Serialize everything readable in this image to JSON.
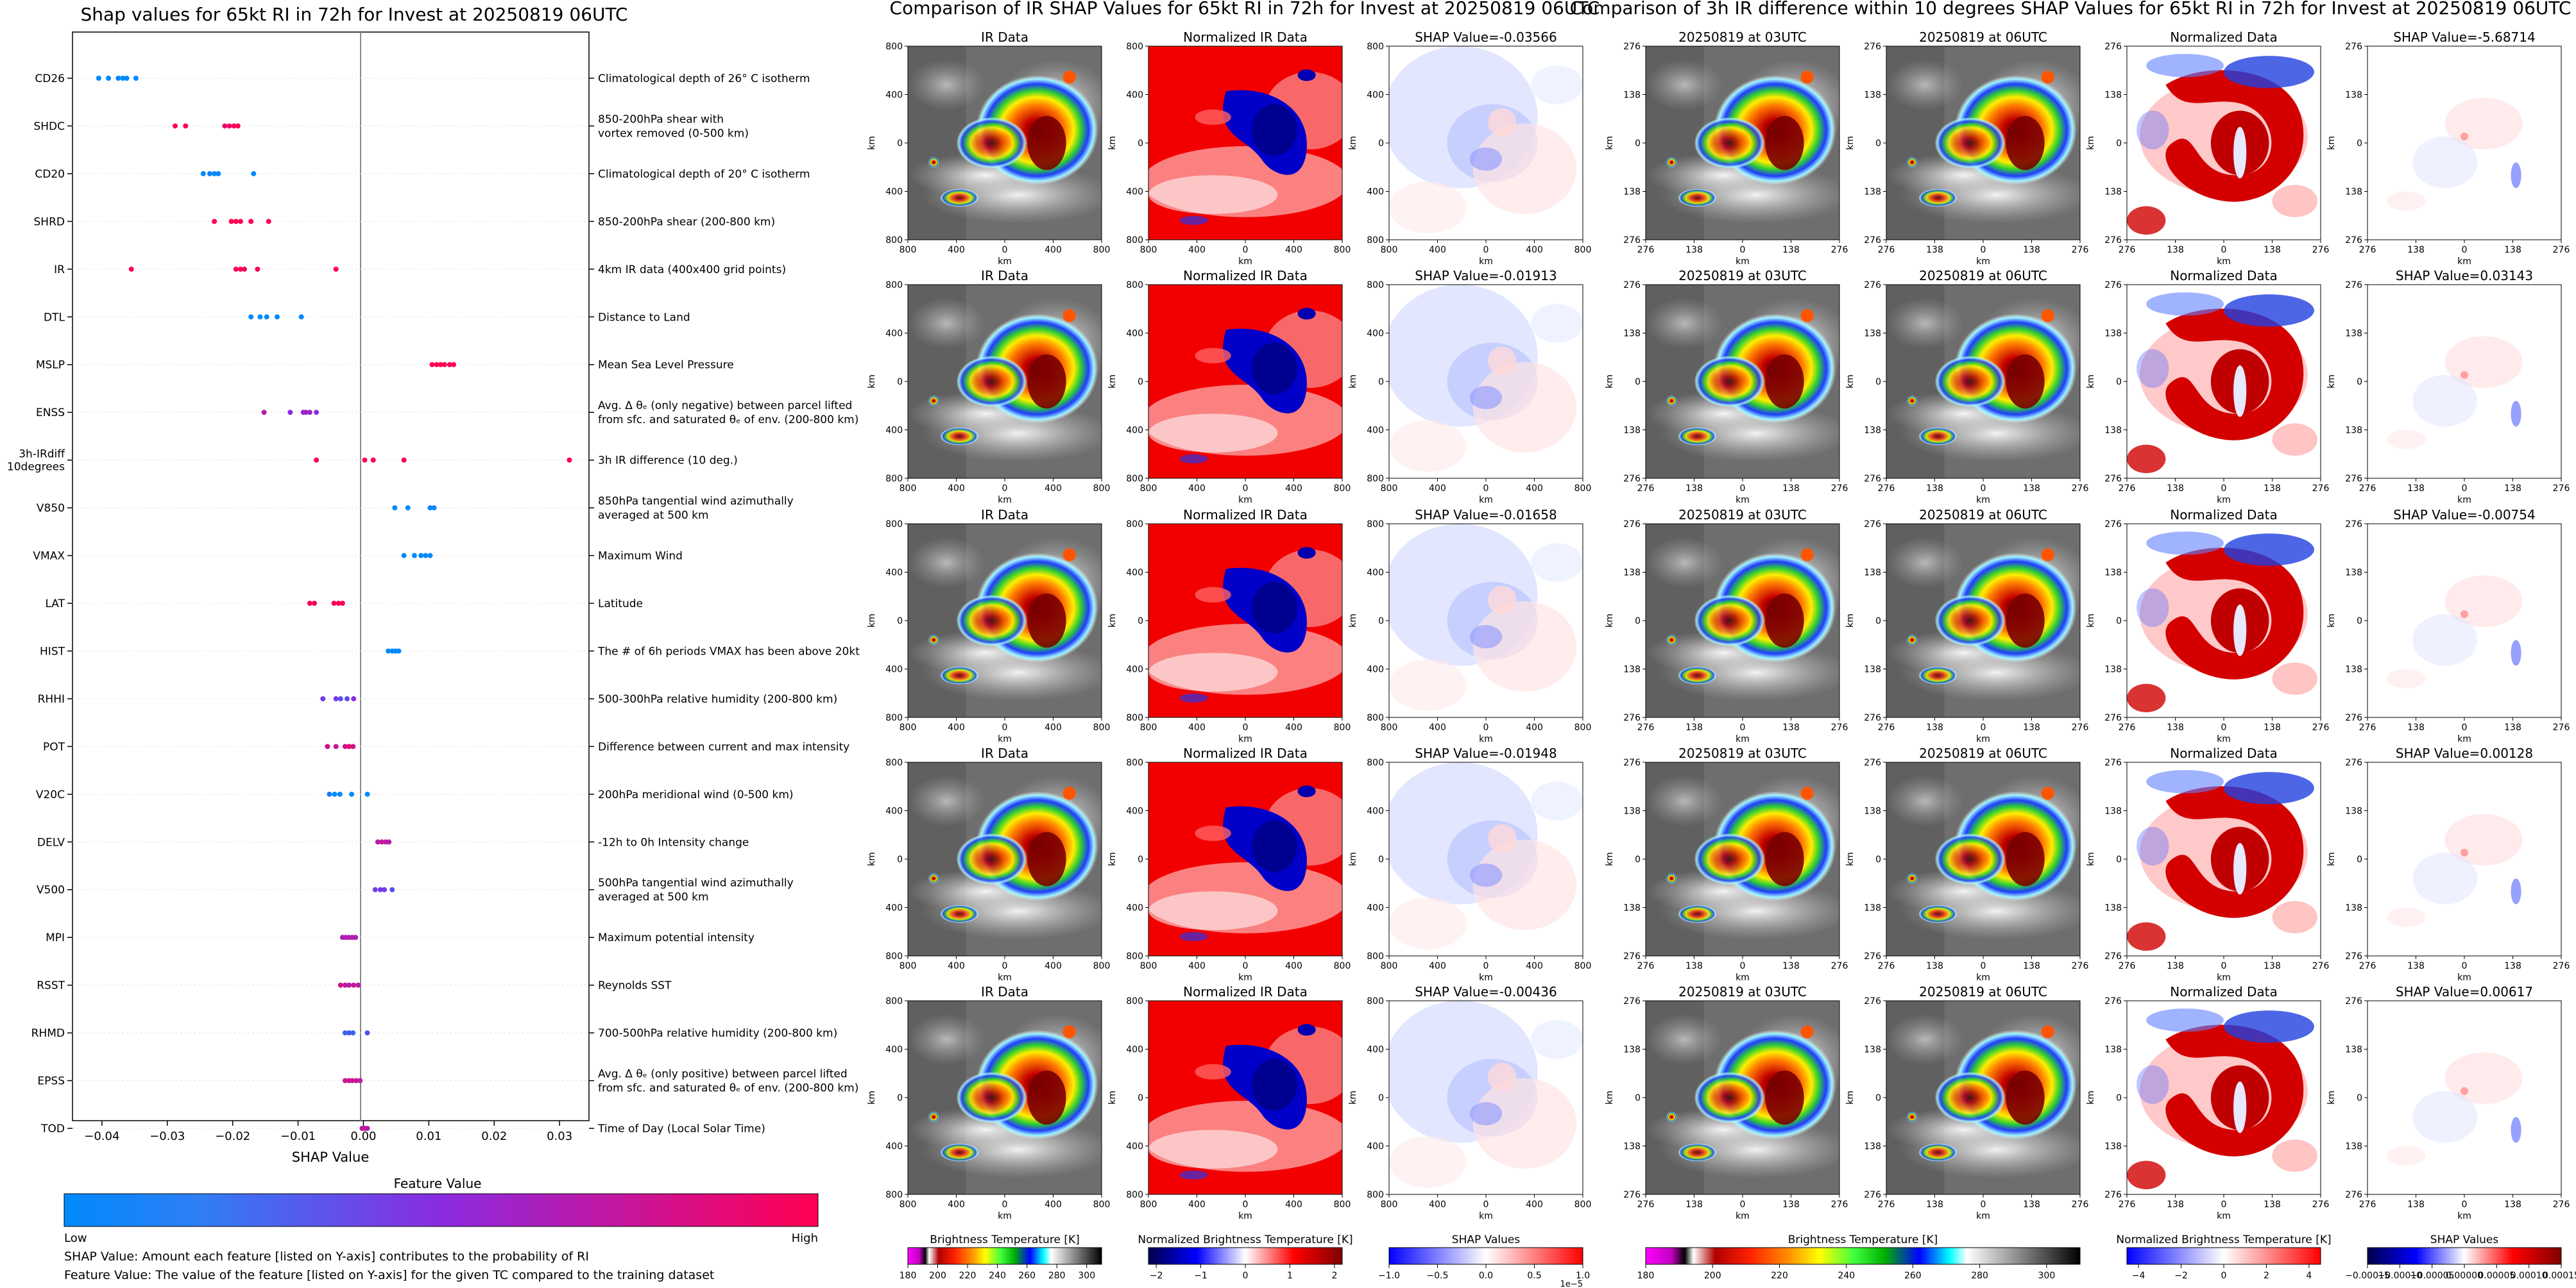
{
  "shap_panel": {
    "title": "Shap values for 65kt RI in 72h for Invest at 20250819 06UTC",
    "xlabel": "SHAP Value",
    "colorbar_title": "Feature Value",
    "colorbar_low": "Low",
    "colorbar_high": "High",
    "note_1": "SHAP Value: Amount each feature [listed on Y-axis] contributes to the probability of RI",
    "note_2": "Feature Value: The value of the feature [listed on Y-axis] for the given TC compared to the training dataset",
    "colors": {
      "low": "#008afc",
      "mid": "#8a2be2",
      "high": "#ff0052"
    }
  },
  "ir_panel": {
    "title": "Comparison of IR SHAP Values for 65kt RI in 72h for Invest at 20250819 06UTC",
    "col_titles": [
      "IR Data",
      "Normalized IR Data"
    ],
    "shap_titles": [
      "SHAP Value=-0.03566",
      "SHAP Value=-0.01913",
      "SHAP Value=-0.01658",
      "SHAP Value=-0.01948",
      "SHAP Value=-0.00436"
    ],
    "axis_label": "km",
    "ticks_y": [
      "800",
      "400",
      "0",
      "400",
      "800"
    ],
    "ticks_x": [
      "800",
      "400",
      "0",
      "400",
      "800"
    ],
    "colorbars": [
      {
        "label": "Brightness Temperature [K]",
        "ticks": [
          "180",
          "200",
          "220",
          "240",
          "260",
          "280",
          "300"
        ]
      },
      {
        "label": "Normalized Brightness Temperature [K]",
        "ticks": [
          "−2",
          "−1",
          "0",
          "1",
          "2"
        ]
      },
      {
        "label": "SHAP Values",
        "ticks": [
          "−1.0",
          "−0.5",
          "0.0",
          "0.5",
          "1.0"
        ],
        "exponent": "1e−5"
      }
    ]
  },
  "diff_panel": {
    "title": "Comparison of 3h IR difference within 10 degrees SHAP Values for 65kt RI in 72h for Invest at 20250819 06UTC",
    "col_titles": [
      "20250819 at 03UTC",
      "20250819 at 06UTC",
      "Normalized Data"
    ],
    "shap_titles": [
      "SHAP Value=-5.68714",
      "SHAP Value=0.03143",
      "SHAP Value=-0.00754",
      "SHAP Value=0.00128",
      "SHAP Value=0.00617"
    ],
    "axis_label": "km",
    "ticks_y": [
      "276",
      "138",
      "0",
      "138",
      "276"
    ],
    "ticks_x": [
      "276",
      "138",
      "0",
      "138",
      "276"
    ],
    "colorbars": [
      {
        "label": "Brightness Temperature [K]",
        "ticks": [
          "180",
          "200",
          "220",
          "240",
          "260",
          "280",
          "300"
        ]
      },
      {
        "label": "Normalized Brightness Temperature [K]",
        "ticks": [
          "−4",
          "−2",
          "0",
          "2",
          "4"
        ]
      },
      {
        "label": "SHAP Values",
        "ticks": [
          "−0.00015",
          "−0.00010",
          "−0.00005",
          "0.00000",
          "0.00005",
          "0.00010",
          "0.00015"
        ]
      }
    ]
  },
  "chart_data": {
    "type": "scatter",
    "title": "Shap values for 65kt RI in 72h for Invest at 20250819 06UTC",
    "xlabel": "SHAP Value",
    "ylabel": "",
    "xlim": [
      -0.0445,
      0.0345
    ],
    "xticks": [
      -0.04,
      -0.03,
      -0.02,
      -0.01,
      0.0,
      0.01,
      0.02,
      0.03
    ],
    "xtick_labels": [
      "−0.04",
      "−0.03",
      "−0.02",
      "−0.01",
      "0.00",
      "0.01",
      "0.02",
      "0.03"
    ],
    "grid": false,
    "color_meaning": "Feature Value (0 = Low, 1 = High)",
    "features": [
      {
        "code": "CD26",
        "label": "Climatological depth of 26° C isotherm",
        "points": [
          [
            -0.0405,
            0.0
          ],
          [
            -0.039,
            0.0
          ],
          [
            -0.0375,
            0.02
          ],
          [
            -0.0368,
            0.0
          ],
          [
            -0.0362,
            0.0
          ],
          [
            -0.0348,
            0.0
          ]
        ]
      },
      {
        "code": "SHDC",
        "label": "850-200hPa shear with|vortex removed (0-500 km)",
        "points": [
          [
            -0.0288,
            1.0
          ],
          [
            -0.0272,
            1.0
          ],
          [
            -0.0212,
            0.9
          ],
          [
            -0.0205,
            0.95
          ],
          [
            -0.0198,
            0.95
          ],
          [
            -0.0192,
            1.0
          ]
        ]
      },
      {
        "code": "CD20",
        "label": "Climatological depth of 20° C isotherm",
        "points": [
          [
            -0.0245,
            0.0
          ],
          [
            -0.0235,
            0.05
          ],
          [
            -0.0228,
            0.0
          ],
          [
            -0.0222,
            0.0
          ],
          [
            -0.0168,
            0.0
          ]
        ]
      },
      {
        "code": "SHRD",
        "label": "850-200hPa shear (200-800 km)",
        "points": [
          [
            -0.0228,
            1.0
          ],
          [
            -0.0202,
            1.0
          ],
          [
            -0.0195,
            1.0
          ],
          [
            -0.0188,
            1.0
          ],
          [
            -0.0172,
            1.0
          ],
          [
            -0.0145,
            1.0
          ]
        ]
      },
      {
        "code": "IR",
        "label": "4km IR data (400x400 grid points)",
        "points": [
          [
            -0.0355,
            1.0
          ],
          [
            -0.0195,
            1.0
          ],
          [
            -0.0188,
            1.0
          ],
          [
            -0.0182,
            0.95
          ],
          [
            -0.0162,
            1.0
          ],
          [
            -0.0042,
            1.0
          ]
        ]
      },
      {
        "code": "DTL",
        "label": "Distance to Land",
        "points": [
          [
            -0.0172,
            0.0
          ],
          [
            -0.0158,
            0.0
          ],
          [
            -0.0148,
            0.0
          ],
          [
            -0.0132,
            0.0
          ],
          [
            -0.0095,
            0.0
          ]
        ]
      },
      {
        "code": "MSLP",
        "label": "Mean Sea Level Pressure",
        "points": [
          [
            0.0105,
            1.0
          ],
          [
            0.0112,
            1.0
          ],
          [
            0.0118,
            1.0
          ],
          [
            0.0124,
            1.0
          ],
          [
            0.0132,
            1.0
          ],
          [
            0.0138,
            1.0
          ]
        ]
      },
      {
        "code": "ENSS",
        "label": "Avg. Δ θₑ (only negative) between parcel lifted|from sfc. and saturated θₑ of env. (200-800 km)",
        "points": [
          [
            -0.0152,
            0.7
          ],
          [
            -0.0112,
            0.5
          ],
          [
            -0.0092,
            0.55
          ],
          [
            -0.0088,
            0.6
          ],
          [
            -0.0082,
            0.6
          ],
          [
            -0.0072,
            0.5
          ]
        ]
      },
      {
        "code": "3h-IRdiff|10degrees",
        "label": "3h IR difference (10 deg.)",
        "points": [
          [
            -0.0072,
            1.0
          ],
          [
            0.0002,
            1.0
          ],
          [
            0.0015,
            1.0
          ],
          [
            0.0062,
            1.0
          ],
          [
            0.0315,
            1.0
          ]
        ]
      },
      {
        "code": "V850",
        "label": "850hPa tangential wind azimuthally|averaged at 500 km",
        "points": [
          [
            0.0048,
            0.0
          ],
          [
            0.0068,
            0.0
          ],
          [
            0.0102,
            0.0
          ],
          [
            0.0108,
            0.0
          ]
        ]
      },
      {
        "code": "VMAX",
        "label": "Maximum Wind",
        "points": [
          [
            0.0062,
            0.0
          ],
          [
            0.0078,
            0.0
          ],
          [
            0.0088,
            0.0
          ],
          [
            0.0095,
            0.0
          ],
          [
            0.0102,
            0.0
          ]
        ]
      },
      {
        "code": "LAT",
        "label": "Latitude",
        "points": [
          [
            -0.0082,
            1.0
          ],
          [
            -0.0075,
            0.95
          ],
          [
            -0.0045,
            1.0
          ],
          [
            -0.0038,
            1.0
          ],
          [
            -0.0032,
            1.0
          ]
        ]
      },
      {
        "code": "HIST",
        "label": "The # of 6h periods VMAX has been above 20kt",
        "points": [
          [
            0.0038,
            0.0
          ],
          [
            0.0044,
            0.0
          ],
          [
            0.0049,
            0.0
          ],
          [
            0.0054,
            0.0
          ]
        ]
      },
      {
        "code": "RHHI",
        "label": "500-300hPa relative humidity (200-800 km)",
        "points": [
          [
            -0.0062,
            0.4
          ],
          [
            -0.0042,
            0.45
          ],
          [
            -0.0035,
            0.3
          ],
          [
            -0.0025,
            0.35
          ],
          [
            -0.0015,
            0.5
          ]
        ]
      },
      {
        "code": "POT",
        "label": "Difference between current and max intensity",
        "points": [
          [
            -0.0055,
            0.8
          ],
          [
            -0.0042,
            0.75
          ],
          [
            -0.0028,
            0.8
          ],
          [
            -0.0022,
            0.9
          ],
          [
            -0.0016,
            0.8
          ]
        ]
      },
      {
        "code": "V20C",
        "label": "200hPa meridional wind (0-500 km)",
        "points": [
          [
            -0.0052,
            0.05
          ],
          [
            -0.0044,
            0.0
          ],
          [
            -0.0036,
            0.0
          ],
          [
            -0.0018,
            0.0
          ],
          [
            0.0006,
            0.0
          ]
        ]
      },
      {
        "code": "DELV",
        "label": "-12h to 0h Intensity change",
        "points": [
          [
            0.0022,
            0.7
          ],
          [
            0.0028,
            0.75
          ],
          [
            0.0034,
            0.7
          ],
          [
            0.0039,
            0.7
          ]
        ]
      },
      {
        "code": "V500",
        "label": "500hPa tangential wind azimuthally|averaged at 500 km",
        "points": [
          [
            0.0018,
            0.4
          ],
          [
            0.0026,
            0.45
          ],
          [
            0.0032,
            0.4
          ],
          [
            0.0044,
            0.3
          ]
        ]
      },
      {
        "code": "MPI",
        "label": "Maximum potential intensity",
        "points": [
          [
            -0.0032,
            0.65
          ],
          [
            -0.0027,
            0.7
          ],
          [
            -0.0022,
            0.65
          ],
          [
            -0.0017,
            0.7
          ],
          [
            -0.0012,
            0.65
          ]
        ]
      },
      {
        "code": "RSST",
        "label": "Reynolds SST",
        "points": [
          [
            -0.0035,
            0.8
          ],
          [
            -0.0028,
            0.75
          ],
          [
            -0.0022,
            0.7
          ],
          [
            -0.0015,
            0.75
          ],
          [
            -0.0008,
            0.7
          ]
        ]
      },
      {
        "code": "RHMD",
        "label": "700-500hPa relative humidity (200-800 km)",
        "points": [
          [
            -0.0028,
            0.2
          ],
          [
            -0.0022,
            0.25
          ],
          [
            -0.0016,
            0.2
          ],
          [
            0.0006,
            0.3
          ]
        ]
      },
      {
        "code": "EPSS",
        "label": "Avg. Δ θₑ (only positive) between parcel lifted|from sfc. and saturated θₑ of env. (200-800 km)",
        "points": [
          [
            -0.0028,
            0.75
          ],
          [
            -0.0022,
            0.8
          ],
          [
            -0.0017,
            0.75
          ],
          [
            -0.0011,
            0.8
          ],
          [
            -0.0005,
            0.7
          ]
        ]
      },
      {
        "code": "TOD",
        "label": "Time of Day (Local Solar Time)",
        "points": [
          [
            -0.0002,
            0.7
          ],
          [
            0.0002,
            0.75
          ],
          [
            0.0006,
            0.7
          ]
        ]
      }
    ]
  }
}
